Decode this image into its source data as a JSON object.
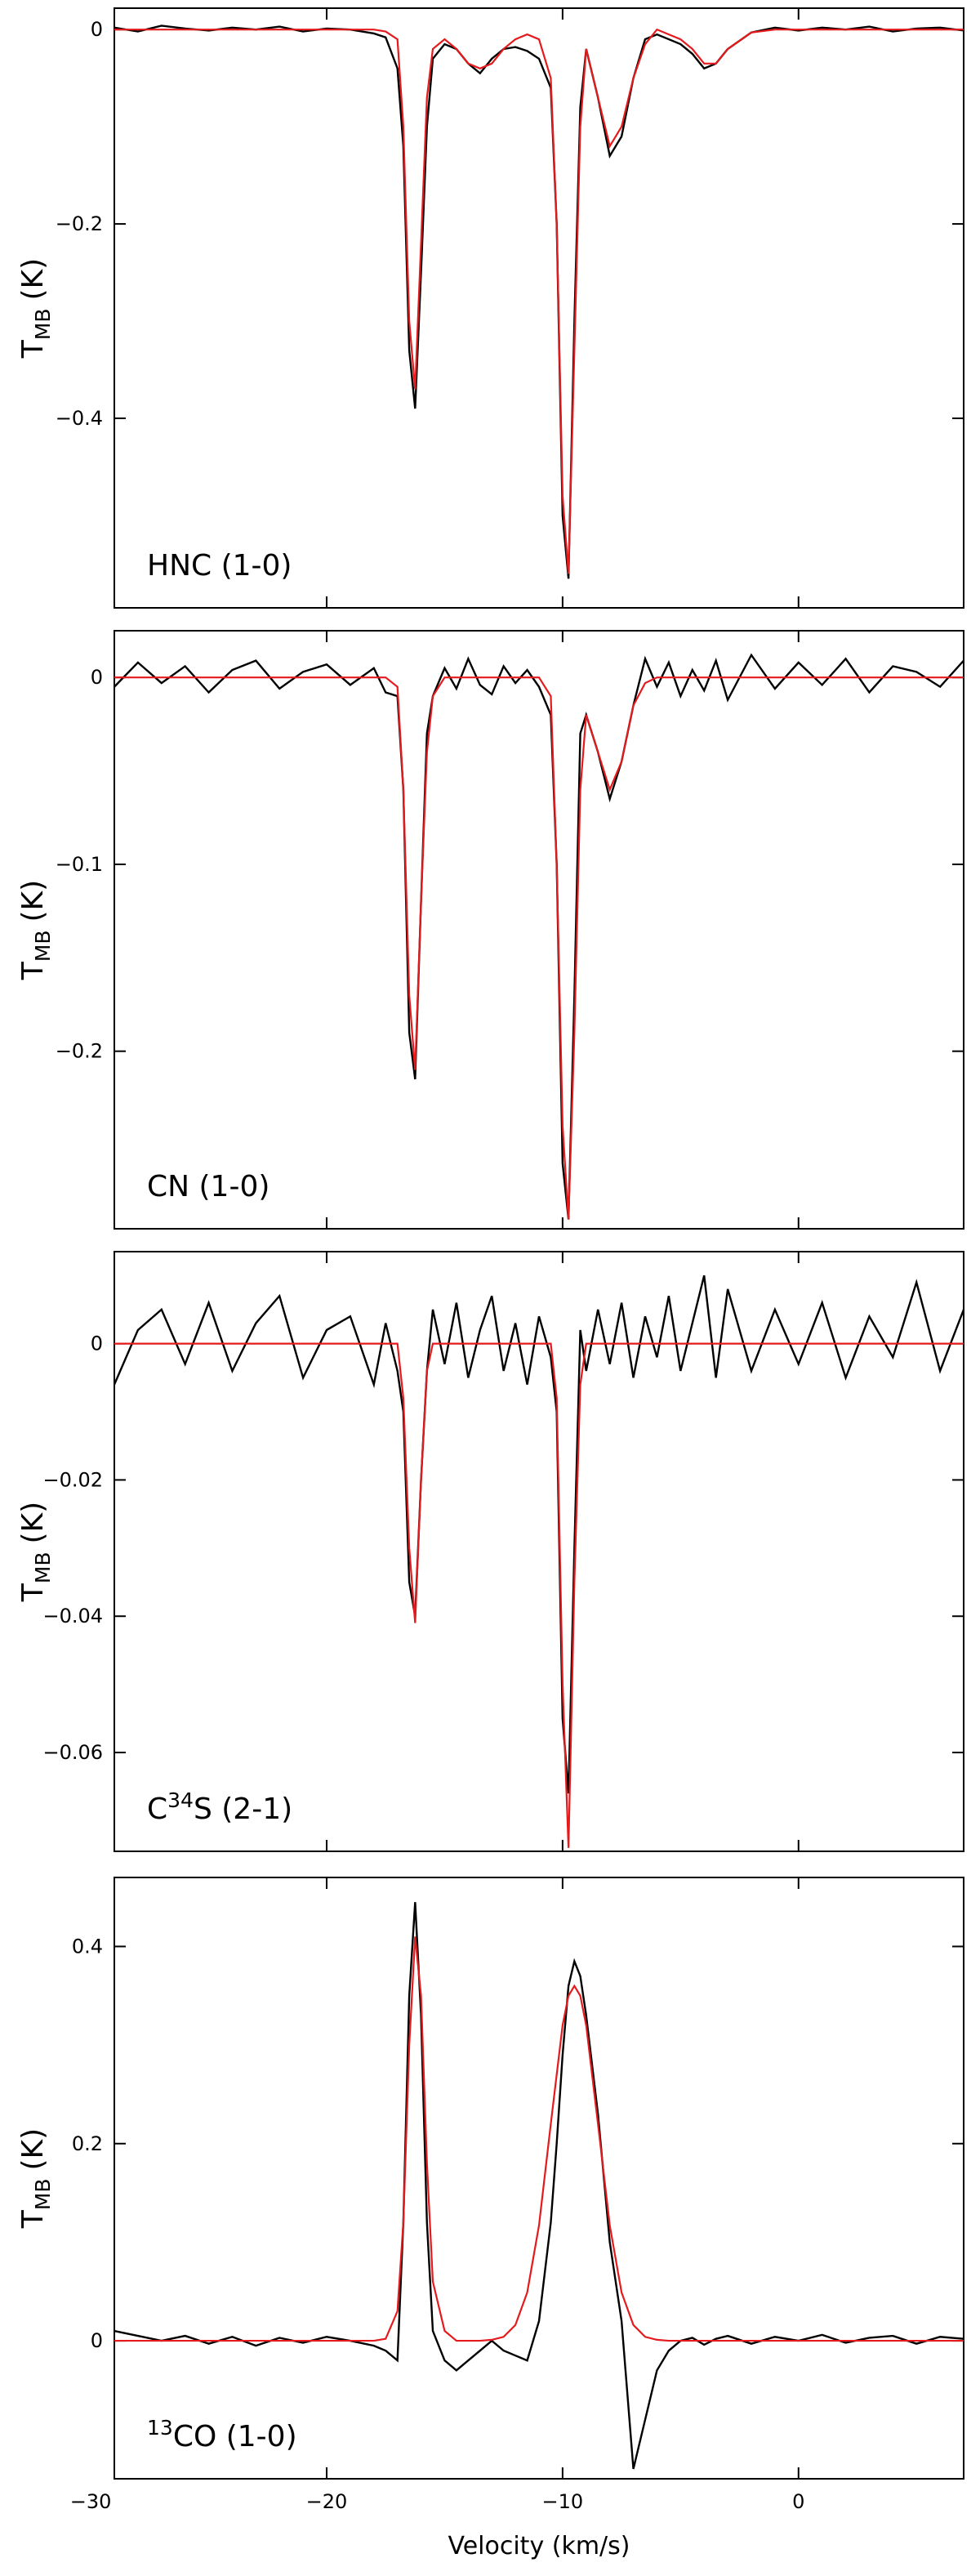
{
  "chart_data": [
    {
      "type": "line",
      "label": [
        {
          "text": "HNC (1-0)"
        }
      ],
      "ylabel": {
        "main": "T",
        "sub": "MB",
        "unit": "(K)"
      },
      "xlim": [
        -29,
        7
      ],
      "xticks": [
        -30,
        -20,
        -10,
        0
      ],
      "ylim": [
        -0.595,
        0.022
      ],
      "yticks": [
        0,
        {
          "value": -0.2,
          "label": "−0.2"
        },
        {
          "value": -0.4,
          "label": "−0.4"
        }
      ],
      "x": [
        -29,
        -28,
        -27,
        -26,
        -25,
        -24,
        -23,
        -22,
        -21,
        -20,
        -19,
        -18,
        -17.5,
        -17,
        -16.75,
        -16.5,
        -16.25,
        -16,
        -15.75,
        -15.5,
        -15,
        -14.5,
        -14,
        -13.5,
        -13,
        -12.5,
        -12,
        -11.5,
        -11,
        -10.5,
        -10.25,
        -10,
        -9.75,
        -9.5,
        -9.25,
        -9,
        -8.5,
        -8,
        -7.5,
        -7,
        -6.5,
        -6,
        -5.5,
        -5,
        -4.5,
        -4,
        -3.5,
        -3,
        -2,
        -1,
        0,
        1,
        2,
        3,
        4,
        5,
        6,
        7
      ],
      "series": [
        {
          "color": "#000000",
          "values": [
            0.002,
            -0.002,
            0.004,
            0.001,
            -0.001,
            0.002,
            0,
            0.003,
            -0.002,
            0.001,
            0,
            -0.004,
            -0.008,
            -0.04,
            -0.12,
            -0.33,
            -0.39,
            -0.25,
            -0.1,
            -0.03,
            -0.015,
            -0.02,
            -0.035,
            -0.045,
            -0.03,
            -0.02,
            -0.018,
            -0.022,
            -0.03,
            -0.06,
            -0.2,
            -0.5,
            -0.565,
            -0.3,
            -0.08,
            -0.02,
            -0.07,
            -0.13,
            -0.11,
            -0.05,
            -0.01,
            -0.005,
            -0.01,
            -0.015,
            -0.025,
            -0.04,
            -0.035,
            -0.02,
            -0.003,
            0.002,
            -0.001,
            0.002,
            0,
            0.003,
            -0.002,
            0.001,
            0.002,
            -0.001
          ]
        },
        {
          "color": "#e41a1c",
          "values": [
            0,
            0,
            0,
            0,
            0,
            0,
            0,
            0,
            0,
            0,
            0,
            0,
            -0.002,
            -0.01,
            -0.1,
            -0.3,
            -0.37,
            -0.22,
            -0.07,
            -0.02,
            -0.01,
            -0.02,
            -0.035,
            -0.04,
            -0.035,
            -0.02,
            -0.01,
            -0.005,
            -0.01,
            -0.05,
            -0.2,
            -0.48,
            -0.56,
            -0.33,
            -0.1,
            -0.02,
            -0.07,
            -0.12,
            -0.1,
            -0.05,
            -0.015,
            0,
            -0.005,
            -0.01,
            -0.02,
            -0.035,
            -0.035,
            -0.02,
            -0.003,
            0,
            0,
            0,
            0,
            0,
            0,
            0,
            0,
            0
          ]
        }
      ]
    },
    {
      "type": "line",
      "label": [
        {
          "text": "CN (1-0)"
        }
      ],
      "ylabel": {
        "main": "T",
        "sub": "MB",
        "unit": "(K)"
      },
      "xlim": [
        -29,
        7
      ],
      "xticks": [
        -30,
        -20,
        -10,
        0
      ],
      "ylim": [
        -0.295,
        0.025
      ],
      "yticks": [
        0,
        {
          "value": -0.1,
          "label": "−0.1"
        },
        {
          "value": -0.2,
          "label": "−0.2"
        }
      ],
      "x": [
        -29,
        -28,
        -27,
        -26,
        -25,
        -24,
        -23,
        -22,
        -21,
        -20,
        -19,
        -18,
        -17.5,
        -17,
        -16.75,
        -16.5,
        -16.25,
        -16,
        -15.75,
        -15.5,
        -15,
        -14.5,
        -14,
        -13.5,
        -13,
        -12.5,
        -12,
        -11.5,
        -11,
        -10.5,
        -10.25,
        -10,
        -9.75,
        -9.5,
        -9.25,
        -9,
        -8.5,
        -8,
        -7.5,
        -7,
        -6.5,
        -6,
        -5.5,
        -5,
        -4.5,
        -4,
        -3.5,
        -3,
        -2,
        -1,
        0,
        1,
        2,
        3,
        4,
        5,
        6,
        7
      ],
      "series": [
        {
          "color": "#000000",
          "values": [
            -0.005,
            0.008,
            -0.003,
            0.006,
            -0.008,
            0.004,
            0.009,
            -0.006,
            0.003,
            0.007,
            -0.004,
            0.005,
            -0.008,
            -0.01,
            -0.06,
            -0.19,
            -0.215,
            -0.12,
            -0.03,
            -0.01,
            0.005,
            -0.006,
            0.01,
            -0.004,
            -0.009,
            0.006,
            -0.003,
            0.004,
            -0.005,
            -0.02,
            -0.1,
            -0.26,
            -0.29,
            -0.17,
            -0.03,
            -0.02,
            -0.04,
            -0.065,
            -0.045,
            -0.015,
            0.01,
            -0.005,
            0.008,
            -0.01,
            0.004,
            -0.007,
            0.009,
            -0.012,
            0.012,
            -0.006,
            0.008,
            -0.004,
            0.01,
            -0.008,
            0.006,
            0.003,
            -0.005,
            0.009
          ]
        },
        {
          "color": "#e41a1c",
          "values": [
            0,
            0,
            0,
            0,
            0,
            0,
            0,
            0,
            0,
            0,
            0,
            0,
            0,
            -0.005,
            -0.06,
            -0.17,
            -0.21,
            -0.12,
            -0.04,
            -0.01,
            0,
            0,
            0,
            0,
            0,
            0,
            0,
            0,
            0,
            -0.01,
            -0.1,
            -0.24,
            -0.29,
            -0.19,
            -0.06,
            -0.02,
            -0.04,
            -0.06,
            -0.045,
            -0.015,
            -0.003,
            0,
            0,
            0,
            0,
            0,
            0,
            0,
            0,
            0,
            0,
            0,
            0,
            0,
            0,
            0,
            0,
            0
          ]
        }
      ]
    },
    {
      "type": "line",
      "label": [
        {
          "text": "C"
        },
        {
          "text": "34",
          "sup": true
        },
        {
          "text": "S (2-1)"
        }
      ],
      "ylabel": {
        "main": "T",
        "sub": "MB",
        "unit": "(K)"
      },
      "xlim": [
        -29,
        7
      ],
      "xticks": [
        -30,
        -20,
        -10,
        0
      ],
      "ylim": [
        -0.0745,
        0.0135
      ],
      "yticks": [
        0,
        {
          "value": -0.02,
          "label": "−0.02"
        },
        {
          "value": -0.04,
          "label": "−0.04"
        },
        {
          "value": -0.06,
          "label": "−0.06"
        }
      ],
      "x": [
        -29,
        -28,
        -27,
        -26,
        -25,
        -24,
        -23,
        -22,
        -21,
        -20,
        -19,
        -18,
        -17.5,
        -17,
        -16.75,
        -16.5,
        -16.25,
        -16,
        -15.75,
        -15.5,
        -15,
        -14.5,
        -14,
        -13.5,
        -13,
        -12.5,
        -12,
        -11.5,
        -11,
        -10.5,
        -10.25,
        -10,
        -9.75,
        -9.5,
        -9.25,
        -9,
        -8.5,
        -8,
        -7.5,
        -7,
        -6.5,
        -6,
        -5.5,
        -5,
        -4.5,
        -4,
        -3.5,
        -3,
        -2,
        -1,
        0,
        1,
        2,
        3,
        4,
        5,
        6,
        7
      ],
      "series": [
        {
          "color": "#000000",
          "values": [
            -0.006,
            0.002,
            0.005,
            -0.003,
            0.006,
            -0.004,
            0.003,
            0.007,
            -0.005,
            0.002,
            0.004,
            -0.006,
            0.003,
            -0.004,
            -0.01,
            -0.035,
            -0.04,
            -0.02,
            -0.004,
            0.005,
            -0.003,
            0.006,
            -0.005,
            0.002,
            0.007,
            -0.004,
            0.003,
            -0.006,
            0.004,
            -0.002,
            -0.01,
            -0.055,
            -0.066,
            -0.03,
            0.002,
            -0.004,
            0.005,
            -0.003,
            0.006,
            -0.005,
            0.004,
            -0.002,
            0.007,
            -0.004,
            0.003,
            0.01,
            -0.005,
            0.008,
            -0.004,
            0.005,
            -0.003,
            0.006,
            -0.005,
            0.004,
            -0.002,
            0.009,
            -0.004,
            0.005
          ]
        },
        {
          "color": "#e41a1c",
          "values": [
            0,
            0,
            0,
            0,
            0,
            0,
            0,
            0,
            0,
            0,
            0,
            0,
            0,
            0,
            -0.008,
            -0.03,
            -0.041,
            -0.02,
            -0.004,
            0,
            0,
            0,
            0,
            0,
            0,
            0,
            0,
            0,
            0,
            0,
            -0.008,
            -0.05,
            -0.074,
            -0.035,
            -0.006,
            0,
            0,
            0,
            0,
            0,
            0,
            0,
            0,
            0,
            0,
            0,
            0,
            0,
            0,
            0,
            0,
            0,
            0,
            0,
            0,
            0,
            0,
            0
          ]
        }
      ]
    },
    {
      "type": "line",
      "label": [
        {
          "text": "13",
          "sup": true
        },
        {
          "text": "CO (1-0)"
        }
      ],
      "ylabel": {
        "main": "T",
        "sub": "MB",
        "unit": "(K)"
      },
      "xlabel": "Velocity (km/s)",
      "xlim": [
        -29,
        7
      ],
      "xticks": [
        {
          "value": -30,
          "label": "−30"
        },
        {
          "value": -20,
          "label": "−20"
        },
        {
          "value": -10,
          "label": "−10"
        },
        0
      ],
      "ylim": [
        -0.14,
        0.47
      ],
      "yticks": [
        0,
        0.2,
        0.4
      ],
      "x": [
        -29,
        -28,
        -27,
        -26,
        -25,
        -24,
        -23,
        -22,
        -21,
        -20,
        -19,
        -18,
        -17.5,
        -17,
        -16.75,
        -16.5,
        -16.25,
        -16,
        -15.75,
        -15.5,
        -15,
        -14.5,
        -14,
        -13.5,
        -13,
        -12.5,
        -12,
        -11.5,
        -11,
        -10.5,
        -10.25,
        -10,
        -9.75,
        -9.5,
        -9.25,
        -9,
        -8.5,
        -8,
        -7.5,
        -7,
        -6.5,
        -6,
        -5.5,
        -5,
        -4.5,
        -4,
        -3.5,
        -3,
        -2,
        -1,
        0,
        1,
        2,
        3,
        4,
        5,
        6,
        7
      ],
      "series": [
        {
          "color": "#000000",
          "values": [
            0.01,
            0.005,
            0,
            0.005,
            -0.003,
            0.004,
            -0.005,
            0.003,
            -0.002,
            0.004,
            0,
            -0.005,
            -0.01,
            -0.02,
            0.12,
            0.35,
            0.445,
            0.33,
            0.12,
            0.01,
            -0.02,
            -0.03,
            -0.02,
            -0.01,
            0,
            -0.01,
            -0.015,
            -0.02,
            0.02,
            0.12,
            0.2,
            0.29,
            0.36,
            0.385,
            0.37,
            0.33,
            0.23,
            0.1,
            0.02,
            -0.13,
            -0.08,
            -0.03,
            -0.01,
            0,
            0.003,
            -0.004,
            0.002,
            0.005,
            -0.003,
            0.004,
            0,
            0.006,
            -0.002,
            0.003,
            0.005,
            -0.003,
            0.004,
            0.002
          ]
        },
        {
          "color": "#e41a1c",
          "values": [
            0,
            0,
            0,
            0,
            0,
            0,
            0,
            0,
            0,
            0,
            0,
            0,
            0.002,
            0.03,
            0.12,
            0.3,
            0.41,
            0.35,
            0.18,
            0.06,
            0.01,
            0,
            0,
            0,
            0.001,
            0.004,
            0.016,
            0.049,
            0.117,
            0.22,
            0.27,
            0.32,
            0.35,
            0.36,
            0.35,
            0.32,
            0.22,
            0.117,
            0.049,
            0.016,
            0.004,
            0.001,
            0,
            0,
            0,
            0,
            0,
            0,
            0,
            0,
            0,
            0,
            0,
            0,
            0,
            0,
            0,
            0
          ]
        }
      ]
    }
  ]
}
